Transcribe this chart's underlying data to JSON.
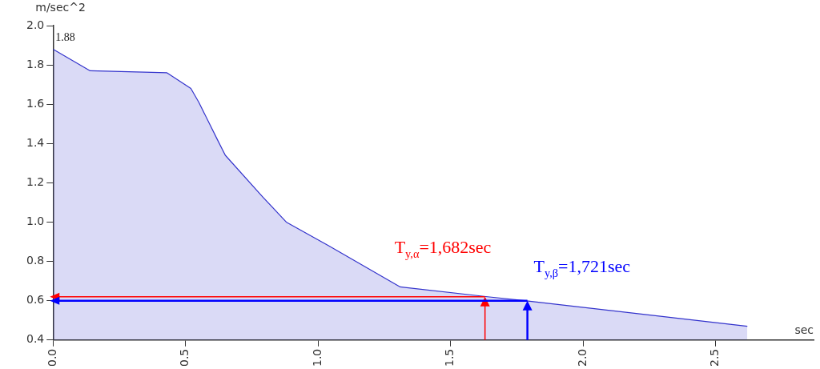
{
  "chart_data": {
    "type": "area",
    "ylabel": "m/sec^2",
    "xlabel": "sec",
    "xlim": [
      0,
      2.87
    ],
    "ylim": [
      0.4,
      2.0
    ],
    "xticks": [
      {
        "value": 0,
        "label": "0.0"
      },
      {
        "value": 0.5,
        "label": "0.5"
      },
      {
        "value": 1,
        "label": "1.0"
      },
      {
        "value": 1.5,
        "label": "1.5"
      },
      {
        "value": 2,
        "label": "2.0"
      },
      {
        "value": 2.5,
        "label": "2.5"
      }
    ],
    "yticks": [
      {
        "value": 0.4,
        "label": "0.4"
      },
      {
        "value": 0.6,
        "label": "0.6"
      },
      {
        "value": 0.8,
        "label": "0.8"
      },
      {
        "value": 1,
        "label": "1.0"
      },
      {
        "value": 1.2,
        "label": "1.2"
      },
      {
        "value": 1.4,
        "label": "1.4"
      },
      {
        "value": 1.6,
        "label": "1.6"
      },
      {
        "value": 1.8,
        "label": "1.8"
      },
      {
        "value": 2,
        "label": "2.0"
      }
    ],
    "grid": false,
    "legend": false,
    "series": [
      {
        "color": "#3333cc",
        "x": [
          0,
          0.14,
          0.43,
          0.52,
          0.55,
          0.62,
          0.65,
          0.79,
          0.88,
          1.04,
          1.31,
          1.64,
          1.78,
          2.62
        ],
        "values": [
          1.88,
          1.77,
          1.76,
          1.68,
          1.61,
          1.42,
          1.34,
          1.13,
          1.0,
          0.88,
          0.67,
          0.62,
          0.6,
          0.47
        ]
      }
    ],
    "annotations": [
      {
        "text": "1.88",
        "x": 0,
        "y": 1.88
      },
      {
        "text": "T$_{y,α}$=1,682sec",
        "x": 1.63,
        "y": 0.62
      },
      {
        "text": "T$_{y,β}$=1,721sec",
        "x": 1.79,
        "y": 0.6
      }
    ]
  }
}
